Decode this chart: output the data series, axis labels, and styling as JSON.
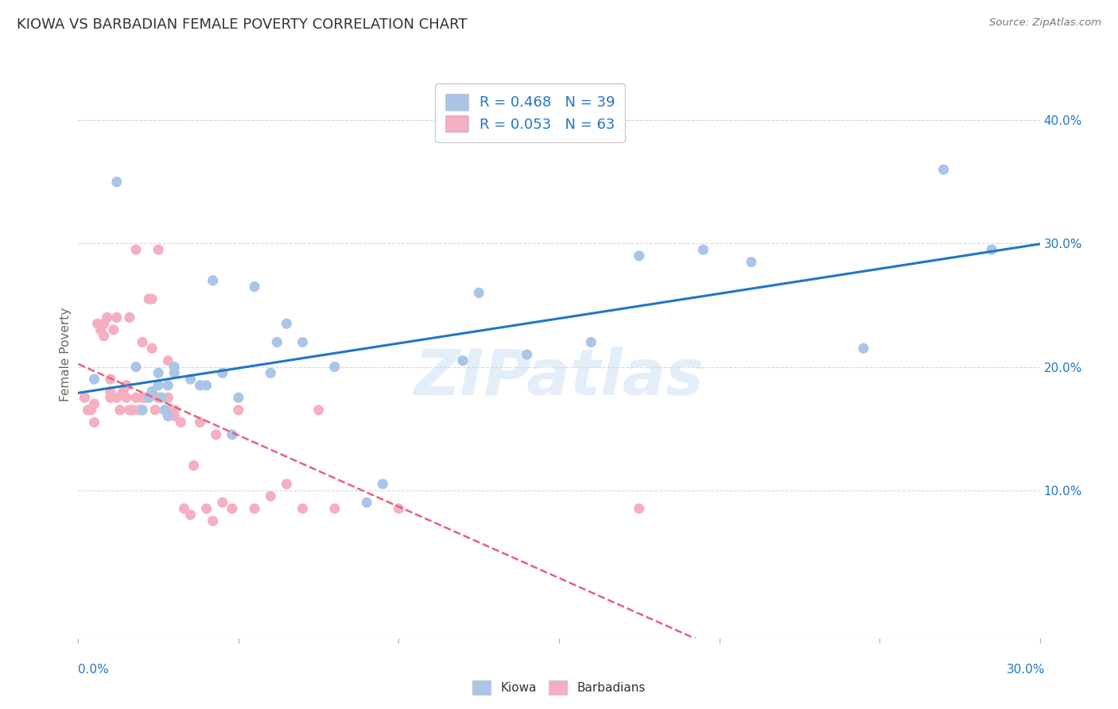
{
  "title": "KIOWA VS BARBADIAN FEMALE POVERTY CORRELATION CHART",
  "source": "Source: ZipAtlas.com",
  "ylabel": "Female Poverty",
  "right_yticks": [
    "40.0%",
    "30.0%",
    "20.0%",
    "10.0%"
  ],
  "right_ytick_vals": [
    0.4,
    0.3,
    0.2,
    0.1
  ],
  "xlim": [
    0.0,
    0.3
  ],
  "ylim": [
    -0.02,
    0.44
  ],
  "kiowa_R": 0.468,
  "kiowa_N": 39,
  "barbadian_R": 0.053,
  "barbadian_N": 63,
  "kiowa_color": "#aac5e8",
  "barbadian_color": "#f5afc0",
  "kiowa_line_color": "#2176c7",
  "barbadian_line_color": "#e8607a",
  "legend_text_color": "#2176c7",
  "kiowa_x": [
    0.005,
    0.012,
    0.018,
    0.02,
    0.022,
    0.023,
    0.025,
    0.025,
    0.026,
    0.027,
    0.028,
    0.028,
    0.03,
    0.03,
    0.035,
    0.038,
    0.04,
    0.042,
    0.045,
    0.048,
    0.05,
    0.055,
    0.06,
    0.062,
    0.065,
    0.07,
    0.08,
    0.09,
    0.095,
    0.12,
    0.125,
    0.14,
    0.16,
    0.175,
    0.195,
    0.21,
    0.245,
    0.27,
    0.285
  ],
  "kiowa_y": [
    0.19,
    0.35,
    0.2,
    0.165,
    0.175,
    0.18,
    0.195,
    0.185,
    0.175,
    0.165,
    0.16,
    0.185,
    0.195,
    0.2,
    0.19,
    0.185,
    0.185,
    0.27,
    0.195,
    0.145,
    0.175,
    0.265,
    0.195,
    0.22,
    0.235,
    0.22,
    0.2,
    0.09,
    0.105,
    0.205,
    0.26,
    0.21,
    0.22,
    0.29,
    0.295,
    0.285,
    0.215,
    0.36,
    0.295
  ],
  "barbadian_x": [
    0.002,
    0.003,
    0.004,
    0.005,
    0.005,
    0.006,
    0.007,
    0.008,
    0.008,
    0.009,
    0.01,
    0.01,
    0.01,
    0.011,
    0.012,
    0.012,
    0.013,
    0.014,
    0.015,
    0.015,
    0.016,
    0.016,
    0.017,
    0.018,
    0.018,
    0.019,
    0.02,
    0.02,
    0.02,
    0.021,
    0.022,
    0.022,
    0.023,
    0.023,
    0.024,
    0.025,
    0.025,
    0.026,
    0.027,
    0.028,
    0.028,
    0.029,
    0.03,
    0.03,
    0.032,
    0.033,
    0.035,
    0.036,
    0.038,
    0.04,
    0.042,
    0.043,
    0.045,
    0.048,
    0.05,
    0.055,
    0.06,
    0.065,
    0.07,
    0.075,
    0.08,
    0.1,
    0.175
  ],
  "barbadian_y": [
    0.175,
    0.165,
    0.165,
    0.155,
    0.17,
    0.235,
    0.23,
    0.225,
    0.235,
    0.24,
    0.175,
    0.18,
    0.19,
    0.23,
    0.175,
    0.24,
    0.165,
    0.18,
    0.175,
    0.185,
    0.165,
    0.24,
    0.165,
    0.175,
    0.295,
    0.165,
    0.165,
    0.175,
    0.22,
    0.175,
    0.175,
    0.255,
    0.255,
    0.215,
    0.165,
    0.295,
    0.175,
    0.175,
    0.165,
    0.175,
    0.205,
    0.165,
    0.165,
    0.16,
    0.155,
    0.085,
    0.08,
    0.12,
    0.155,
    0.085,
    0.075,
    0.145,
    0.09,
    0.085,
    0.165,
    0.085,
    0.095,
    0.105,
    0.085,
    0.165,
    0.085,
    0.085,
    0.085
  ],
  "watermark": "ZIPatlas",
  "background_color": "#ffffff",
  "grid_color": "#d8d8d8"
}
